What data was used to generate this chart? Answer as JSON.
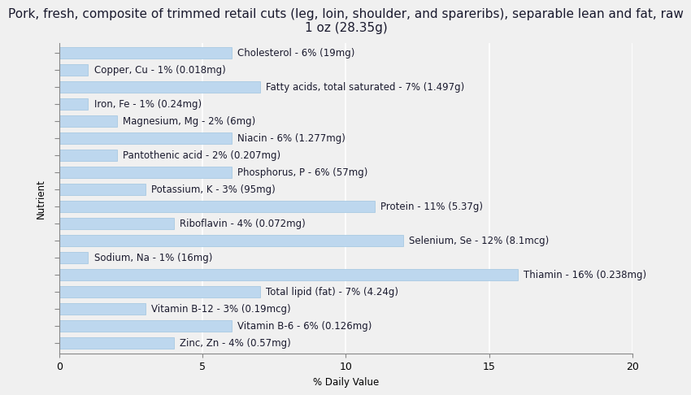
{
  "title": "Pork, fresh, composite of trimmed retail cuts (leg, loin, shoulder, and spareribs), separable lean and fat, raw\n1 oz (28.35g)",
  "xlabel": "% Daily Value",
  "ylabel": "Nutrient",
  "background_color": "#f0f0f0",
  "bar_color": "#bdd7ee",
  "bar_edge_color": "#9ec4e0",
  "xlim": [
    0,
    20
  ],
  "nutrients": [
    "Cholesterol - 6% (19mg)",
    "Copper, Cu - 1% (0.018mg)",
    "Fatty acids, total saturated - 7% (1.497g)",
    "Iron, Fe - 1% (0.24mg)",
    "Magnesium, Mg - 2% (6mg)",
    "Niacin - 6% (1.277mg)",
    "Pantothenic acid - 2% (0.207mg)",
    "Phosphorus, P - 6% (57mg)",
    "Potassium, K - 3% (95mg)",
    "Protein - 11% (5.37g)",
    "Riboflavin - 4% (0.072mg)",
    "Selenium, Se - 12% (8.1mcg)",
    "Sodium, Na - 1% (16mg)",
    "Thiamin - 16% (0.238mg)",
    "Total lipid (fat) - 7% (4.24g)",
    "Vitamin B-12 - 3% (0.19mcg)",
    "Vitamin B-6 - 6% (0.126mg)",
    "Zinc, Zn - 4% (0.57mg)"
  ],
  "values": [
    6,
    1,
    7,
    1,
    2,
    6,
    2,
    6,
    3,
    11,
    4,
    12,
    1,
    16,
    7,
    3,
    6,
    4
  ],
  "grid_color": "#ffffff",
  "title_fontsize": 11,
  "label_fontsize": 8.5,
  "tick_fontsize": 9
}
